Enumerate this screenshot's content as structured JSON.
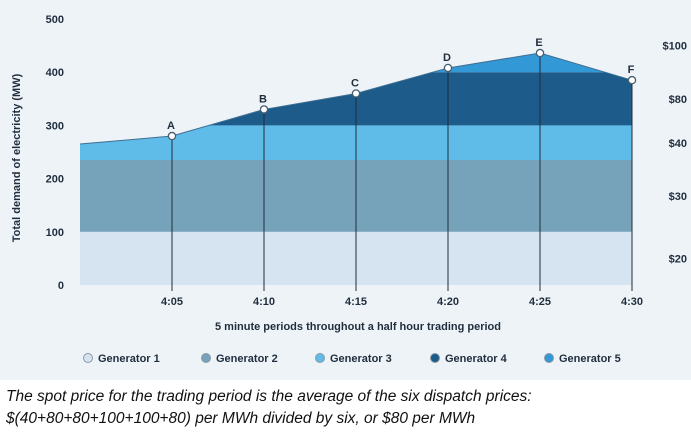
{
  "chart_data": {
    "type": "area",
    "xlabel": "5 minute periods throughout a half hour trading period",
    "ylabel": "Total demand of electricity (MW)",
    "ylim": [
      0,
      500
    ],
    "y_ticks": [
      "0",
      "100",
      "200",
      "300",
      "400",
      "500"
    ],
    "x_ticks": [
      "4:05",
      "4:10",
      "4:15",
      "4:20",
      "4:25",
      "4:30"
    ],
    "x_start_time": "4:00",
    "demand_curve": {
      "x": [
        "4:00",
        "4:05",
        "4:10",
        "4:15",
        "4:20",
        "4:25",
        "4:30"
      ],
      "y": [
        265,
        280,
        330,
        360,
        408,
        436,
        385
      ]
    },
    "dispatch_points": [
      {
        "label": "A",
        "x": "4:05",
        "y": 280
      },
      {
        "label": "B",
        "x": "4:10",
        "y": 330
      },
      {
        "label": "C",
        "x": "4:15",
        "y": 360
      },
      {
        "label": "D",
        "x": "4:20",
        "y": 408
      },
      {
        "label": "E",
        "x": "4:25",
        "y": 436
      },
      {
        "label": "F",
        "x": "4:30",
        "y": 385
      }
    ],
    "series": [
      {
        "name": "Generator 1",
        "from_mw": 0,
        "to_mw": 100,
        "color": "#d6e4f2"
      },
      {
        "name": "Generator 2",
        "from_mw": 100,
        "to_mw": 235,
        "color": "#77a3ba"
      },
      {
        "name": "Generator 3",
        "from_mw": 235,
        "to_mw": 300,
        "color": "#5fbbe8"
      },
      {
        "name": "Generator 4",
        "from_mw": 300,
        "to_mw": 400,
        "color": "#1c5b8a"
      },
      {
        "name": "Generator 5",
        "from_mw": 400,
        "to_mw": 500,
        "color": "#3299d6"
      }
    ],
    "price_axis": [
      {
        "label": "$20",
        "at_mw": 50
      },
      {
        "label": "$30",
        "at_mw": 167
      },
      {
        "label": "$40",
        "at_mw": 267
      },
      {
        "label": "$80",
        "at_mw": 350
      },
      {
        "label": "$100",
        "at_mw": 450
      }
    ],
    "legend_position": "bottom"
  },
  "caption": {
    "line1": "The spot price for the trading period is the average of the six dispatch prices:",
    "line2": "$(40+80+80+100+100+80) per MWh divided by six, or $80 per MWh"
  }
}
